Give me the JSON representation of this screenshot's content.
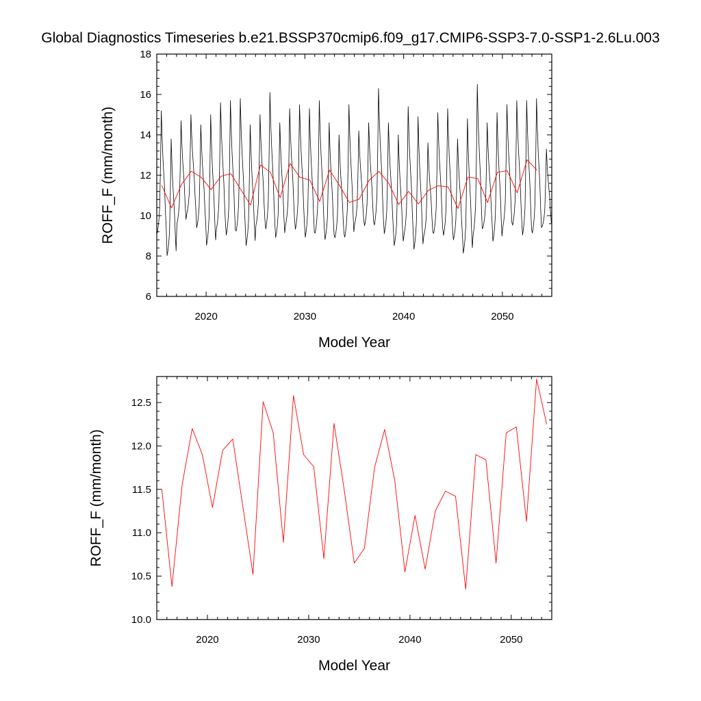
{
  "title": "Global Diagnostics Timeseries b.e21.BSSP370cmip6.f09_g17.CMIP6-SSP3-7.0-SSP1-2.6Lu.003",
  "colors": {
    "monthly": "#000000",
    "annual": "#ff0000",
    "axes": "#000000",
    "background": "#ffffff"
  },
  "chart_data": [
    {
      "type": "line",
      "xlabel": "Model Year",
      "ylabel": "ROFF_F (mm/month)",
      "xlim": [
        2015,
        2055
      ],
      "ylim": [
        6,
        18
      ],
      "xticks": [
        2020,
        2030,
        2040,
        2050
      ],
      "yticks": [
        6,
        8,
        10,
        12,
        14,
        16,
        18
      ],
      "grid": false,
      "legend": "none",
      "series": [
        {
          "key": "monthly",
          "style": "monthly",
          "start_year": 2015,
          "months_per_year": 12,
          "annual_peaks": [
            15.2,
            13.8,
            14.7,
            15.0,
            14.5,
            15.0,
            15.6,
            15.7,
            15.8,
            14.5,
            15.0,
            16.1,
            14.6,
            15.3,
            15.5,
            15.3,
            15.7,
            14.6,
            14.0,
            15.5,
            14.2,
            14.6,
            16.3,
            14.6,
            14.0,
            15.4,
            14.9,
            13.6,
            15.1,
            15.3,
            13.8,
            14.8,
            16.5,
            14.6,
            15.1,
            15.5,
            15.7,
            15.7,
            15.8,
            13.3
          ],
          "annual_troughs": [
            9.0,
            7.9,
            9.5,
            10.0,
            9.3,
            8.4,
            9.2,
            8.9,
            9.1,
            8.4,
            9.4,
            9.2,
            8.8,
            9.4,
            9.2,
            8.8,
            9.0,
            8.7,
            8.8,
            8.8,
            9.5,
            9.4,
            9.4,
            9.0,
            8.4,
            8.9,
            8.2,
            8.9,
            9.0,
            8.9,
            8.7,
            8.0,
            8.9,
            9.3,
            8.6,
            9.3,
            9.4,
            8.9,
            9.0,
            9.4
          ],
          "description_of_values": "Monthly ROFF_F; one seasonal cycle per model year between the listed trough and peak values"
        },
        {
          "key": "annual",
          "style": "annual",
          "x": [
            2015.5,
            2016.5,
            2017.5,
            2018.5,
            2019.5,
            2020.5,
            2021.5,
            2022.5,
            2023.5,
            2024.5,
            2025.5,
            2026.5,
            2027.5,
            2028.5,
            2029.5,
            2030.5,
            2031.5,
            2032.5,
            2033.5,
            2034.5,
            2035.5,
            2036.5,
            2037.5,
            2038.5,
            2039.5,
            2040.5,
            2041.5,
            2042.5,
            2043.5,
            2044.5,
            2045.5,
            2046.5,
            2047.5,
            2048.5,
            2049.5,
            2050.5,
            2051.5,
            2052.5,
            2053.5
          ],
          "values": [
            11.5,
            10.38,
            11.55,
            12.2,
            11.9,
            11.29,
            11.95,
            12.08,
            11.3,
            10.52,
            12.51,
            12.15,
            10.89,
            12.58,
            11.9,
            11.76,
            10.7,
            12.26,
            11.5,
            10.65,
            10.82,
            11.75,
            12.19,
            11.6,
            10.55,
            11.2,
            10.58,
            11.25,
            11.48,
            11.42,
            10.35,
            11.9,
            11.84,
            10.65,
            12.15,
            12.22,
            11.13,
            12.77,
            12.25
          ]
        }
      ]
    },
    {
      "type": "line",
      "xlabel": "Model Year",
      "ylabel": "ROFF_F (mm/month)",
      "xlim": [
        2015,
        2054
      ],
      "ylim": [
        10,
        12.8
      ],
      "xticks": [
        2020,
        2030,
        2040,
        2050
      ],
      "yticks": [
        10.0,
        10.5,
        11.0,
        11.5,
        12.0,
        12.5
      ],
      "ytick_labels": [
        "10.0",
        "10.5",
        "11.0",
        "11.5",
        "12.0",
        "12.5"
      ],
      "grid": false,
      "legend": "none",
      "series": [
        {
          "key": "annual",
          "style": "annual",
          "x": [
            2015.5,
            2016.5,
            2017.5,
            2018.5,
            2019.5,
            2020.5,
            2021.5,
            2022.5,
            2023.5,
            2024.5,
            2025.5,
            2026.5,
            2027.5,
            2028.5,
            2029.5,
            2030.5,
            2031.5,
            2032.5,
            2033.5,
            2034.5,
            2035.5,
            2036.5,
            2037.5,
            2038.5,
            2039.5,
            2040.5,
            2041.5,
            2042.5,
            2043.5,
            2044.5,
            2045.5,
            2046.5,
            2047.5,
            2048.5,
            2049.5,
            2050.5,
            2051.5,
            2052.5,
            2053.5
          ],
          "values": [
            11.5,
            10.38,
            11.55,
            12.2,
            11.9,
            11.29,
            11.95,
            12.08,
            11.3,
            10.52,
            12.51,
            12.15,
            10.89,
            12.58,
            11.9,
            11.76,
            10.7,
            12.26,
            11.5,
            10.65,
            10.82,
            11.75,
            12.19,
            11.6,
            10.55,
            11.2,
            10.58,
            11.25,
            11.48,
            11.42,
            10.35,
            11.9,
            11.84,
            10.65,
            12.15,
            12.22,
            11.13,
            12.77,
            12.25
          ]
        }
      ]
    }
  ]
}
